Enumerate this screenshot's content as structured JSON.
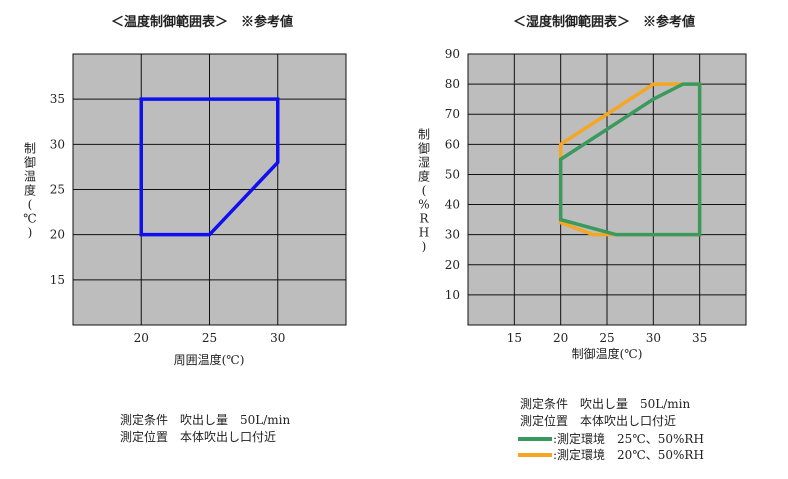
{
  "chart_data": [
    {
      "type": "area",
      "title": "＜温度制御範囲表＞　※参考値",
      "xlabel": "周囲温度(℃)",
      "ylabel": "制御温度(℃)",
      "xlim": [
        15,
        35
      ],
      "ylim": [
        10,
        40
      ],
      "xticks": [
        20,
        25,
        30
      ],
      "yticks": [
        15,
        20,
        25,
        30,
        35
      ],
      "grid": true,
      "series": [
        {
          "color": "#1010ee",
          "points": [
            [
              20,
              35
            ],
            [
              30,
              35
            ],
            [
              30,
              28
            ],
            [
              25,
              20
            ],
            [
              20,
              20
            ]
          ]
        }
      ],
      "notes": [
        "測定条件　吹出し量　50L/min",
        "測定位置　本体吹出し口付近"
      ]
    },
    {
      "type": "area",
      "title": "＜湿度制御範囲表＞　※参考値",
      "xlabel": "制御温度(℃)",
      "ylabel": "制御湿度(%RH)",
      "xlim": [
        10,
        40
      ],
      "ylim": [
        0,
        90
      ],
      "xticks": [
        15,
        20,
        25,
        30,
        35
      ],
      "yticks": [
        10,
        20,
        30,
        40,
        50,
        60,
        70,
        80,
        90
      ],
      "grid": true,
      "series": [
        {
          "name": ":測定環境　25℃、50%RH",
          "color": "#3a9a5e",
          "points": [
            [
              20,
              55
            ],
            [
              30,
              75
            ],
            [
              33.2,
              80
            ],
            [
              35,
              80
            ],
            [
              35,
              30
            ],
            [
              26,
              30
            ],
            [
              20,
              35
            ],
            [
              20,
              55
            ]
          ]
        },
        {
          "name": ":測定環境　20℃、50%RH",
          "color": "#f5a623",
          "points": [
            [
              20,
              60
            ],
            [
              30,
              80
            ],
            [
              35,
              80
            ],
            [
              35,
              30
            ],
            [
              23.5,
              30
            ],
            [
              20,
              34
            ],
            [
              20,
              60
            ]
          ]
        }
      ],
      "notes": [
        "測定条件　吹出し量　50L/min",
        "測定位置　本体吹出し口付近"
      ]
    }
  ],
  "colors": {
    "plot_bg": "#bdbdbd",
    "grid": "#111111"
  }
}
